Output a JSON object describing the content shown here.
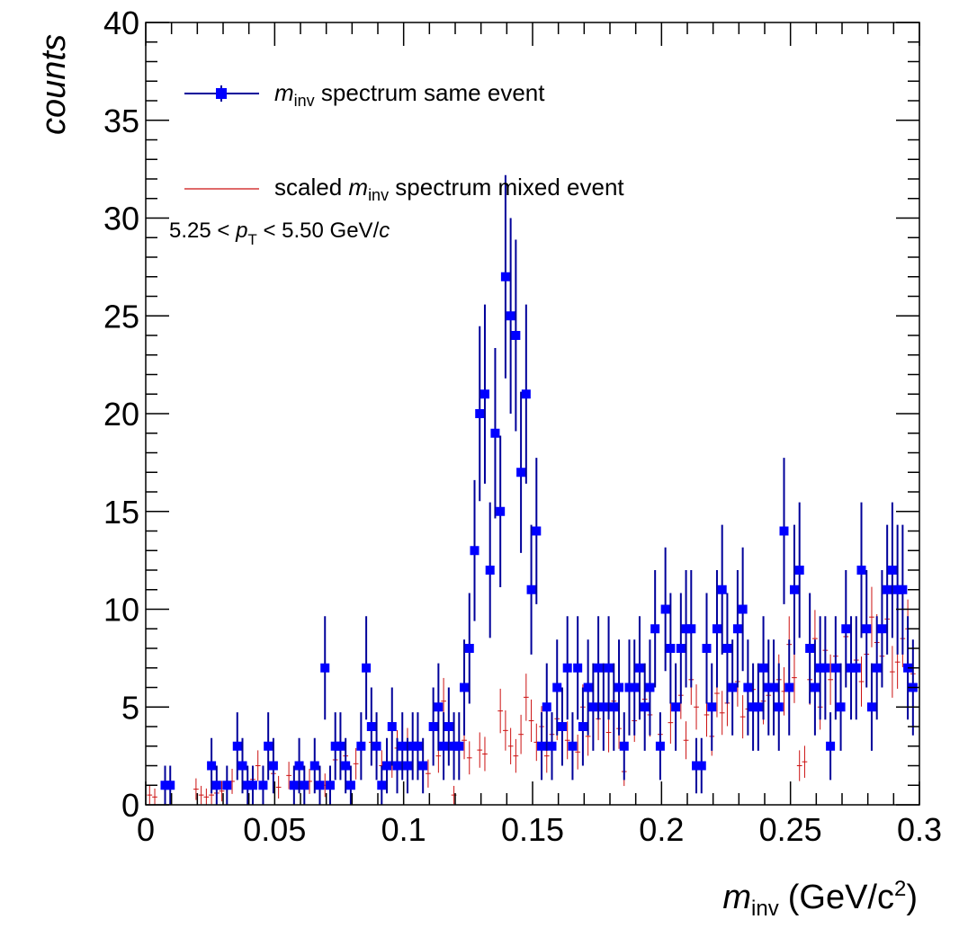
{
  "chart_data": {
    "type": "scatter",
    "xlabel": {
      "main": "m",
      "sub": "inv",
      "unit": "(GeV/c",
      "sup": "2",
      "close": ")"
    },
    "ylabel": "counts",
    "xlim": [
      0,
      0.3
    ],
    "ylim": [
      0,
      40
    ],
    "x_ticks": [
      "0",
      "0.05",
      "0.1",
      "0.15",
      "0.2",
      "0.25",
      "0.3"
    ],
    "x_tick_values": [
      0,
      0.05,
      0.1,
      0.15,
      0.2,
      0.25,
      0.3
    ],
    "y_ticks": [
      "0",
      "5",
      "10",
      "15",
      "20",
      "25",
      "30",
      "35",
      "40"
    ],
    "y_tick_values": [
      0,
      5,
      10,
      15,
      20,
      25,
      30,
      35,
      40
    ],
    "grid": false,
    "legend_position": "top-left",
    "annotation": {
      "prefix": "5.25 < ",
      "var": "p",
      "sub": "T",
      "suffix": " < 5.50 GeV/",
      "unit_var": "c"
    },
    "series": [
      {
        "name": {
          "var": "m",
          "sub": "inv",
          "rest": " spectrum same event"
        },
        "color": "#0000ff",
        "line_color": "#00009a",
        "style": "markers-with-errors",
        "points": [
          [
            0.0075,
            1
          ],
          [
            0.0095,
            1
          ],
          [
            0.0255,
            2
          ],
          [
            0.0275,
            1
          ],
          [
            0.0315,
            1
          ],
          [
            0.0355,
            3
          ],
          [
            0.0375,
            2
          ],
          [
            0.0395,
            1
          ],
          [
            0.0415,
            1
          ],
          [
            0.0455,
            1
          ],
          [
            0.0475,
            3
          ],
          [
            0.0495,
            2
          ],
          [
            0.0575,
            1
          ],
          [
            0.0595,
            2
          ],
          [
            0.0615,
            1
          ],
          [
            0.0655,
            2
          ],
          [
            0.0675,
            1
          ],
          [
            0.0695,
            7
          ],
          [
            0.0715,
            1
          ],
          [
            0.0735,
            3
          ],
          [
            0.0755,
            3
          ],
          [
            0.0775,
            2
          ],
          [
            0.0795,
            1
          ],
          [
            0.0835,
            3
          ],
          [
            0.0855,
            7
          ],
          [
            0.0875,
            4
          ],
          [
            0.0895,
            3
          ],
          [
            0.0915,
            1
          ],
          [
            0.0935,
            2
          ],
          [
            0.0955,
            4
          ],
          [
            0.0975,
            2
          ],
          [
            0.0995,
            3
          ],
          [
            0.1015,
            2
          ],
          [
            0.1035,
            3
          ],
          [
            0.1055,
            3
          ],
          [
            0.1075,
            2
          ],
          [
            0.1115,
            4
          ],
          [
            0.1135,
            5
          ],
          [
            0.1155,
            3
          ],
          [
            0.1175,
            4
          ],
          [
            0.1195,
            3
          ],
          [
            0.1215,
            3
          ],
          [
            0.1235,
            6
          ],
          [
            0.1255,
            8
          ],
          [
            0.1275,
            13
          ],
          [
            0.1295,
            20
          ],
          [
            0.1315,
            21
          ],
          [
            0.1335,
            12
          ],
          [
            0.1355,
            19
          ],
          [
            0.1375,
            15
          ],
          [
            0.1395,
            27
          ],
          [
            0.1415,
            25
          ],
          [
            0.1435,
            24
          ],
          [
            0.1455,
            17
          ],
          [
            0.1475,
            21
          ],
          [
            0.1495,
            11
          ],
          [
            0.1515,
            14
          ],
          [
            0.1535,
            3
          ],
          [
            0.1555,
            5
          ],
          [
            0.1575,
            3
          ],
          [
            0.1595,
            6
          ],
          [
            0.1615,
            4
          ],
          [
            0.1635,
            7
          ],
          [
            0.1655,
            3
          ],
          [
            0.1675,
            7
          ],
          [
            0.1695,
            4
          ],
          [
            0.1715,
            6
          ],
          [
            0.1735,
            5
          ],
          [
            0.1755,
            7
          ],
          [
            0.1775,
            5
          ],
          [
            0.1795,
            7
          ],
          [
            0.1815,
            5
          ],
          [
            0.1835,
            6
          ],
          [
            0.1855,
            3
          ],
          [
            0.1875,
            6
          ],
          [
            0.1895,
            6
          ],
          [
            0.1915,
            7
          ],
          [
            0.1935,
            5
          ],
          [
            0.1955,
            6
          ],
          [
            0.1975,
            9
          ],
          [
            0.1995,
            3
          ],
          [
            0.2015,
            10
          ],
          [
            0.2035,
            8
          ],
          [
            0.2055,
            5
          ],
          [
            0.2075,
            8
          ],
          [
            0.2095,
            9
          ],
          [
            0.2115,
            9
          ],
          [
            0.2135,
            2
          ],
          [
            0.2155,
            2
          ],
          [
            0.2175,
            8
          ],
          [
            0.2195,
            5
          ],
          [
            0.2215,
            9
          ],
          [
            0.2235,
            11
          ],
          [
            0.2255,
            8
          ],
          [
            0.2275,
            6
          ],
          [
            0.2295,
            9
          ],
          [
            0.2315,
            10
          ],
          [
            0.2335,
            6
          ],
          [
            0.2355,
            5
          ],
          [
            0.2375,
            5
          ],
          [
            0.2395,
            7
          ],
          [
            0.2415,
            6
          ],
          [
            0.2435,
            6
          ],
          [
            0.2455,
            5
          ],
          [
            0.2475,
            14
          ],
          [
            0.2495,
            6
          ],
          [
            0.2515,
            11
          ],
          [
            0.2535,
            12
          ],
          [
            0.2575,
            8
          ],
          [
            0.2595,
            6
          ],
          [
            0.2615,
            7
          ],
          [
            0.2635,
            7
          ],
          [
            0.2655,
            3
          ],
          [
            0.2675,
            7
          ],
          [
            0.2695,
            5
          ],
          [
            0.2715,
            9
          ],
          [
            0.2735,
            7
          ],
          [
            0.2755,
            7
          ],
          [
            0.2775,
            12
          ],
          [
            0.2795,
            9
          ],
          [
            0.2815,
            5
          ],
          [
            0.2835,
            7
          ],
          [
            0.2855,
            9
          ],
          [
            0.2875,
            11
          ],
          [
            0.2895,
            12
          ],
          [
            0.2915,
            11
          ],
          [
            0.2935,
            11
          ],
          [
            0.2955,
            7
          ],
          [
            0.2975,
            6
          ]
        ]
      },
      {
        "name": {
          "prefix": "scaled ",
          "var": "m",
          "sub": "inv",
          "rest": " spectrum mixed event"
        },
        "color": "#ff0000",
        "line_color": "#cc1111",
        "style": "errorbars-only",
        "points": [
          [
            0.0015,
            0.5
          ],
          [
            0.0035,
            0.4
          ],
          [
            0.0195,
            0.8
          ],
          [
            0.0215,
            0.5
          ],
          [
            0.0235,
            0.4
          ],
          [
            0.0255,
            0.5
          ],
          [
            0.0275,
            0.6
          ],
          [
            0.0295,
            0.7
          ],
          [
            0.0335,
            1.2
          ],
          [
            0.0375,
            1.8
          ],
          [
            0.0415,
            1.3
          ],
          [
            0.0435,
            2.0
          ],
          [
            0.0455,
            1.0
          ],
          [
            0.0495,
            1.6
          ],
          [
            0.0515,
            0.9
          ],
          [
            0.0555,
            1.5
          ],
          [
            0.0595,
            1.8
          ],
          [
            0.0635,
            1.2
          ],
          [
            0.0655,
            2.2
          ],
          [
            0.0695,
            1.0
          ],
          [
            0.0735,
            2.3
          ],
          [
            0.0775,
            2.5
          ],
          [
            0.0815,
            2.1
          ],
          [
            0.0835,
            3.0
          ],
          [
            0.0875,
            3.2
          ],
          [
            0.0915,
            2.0
          ],
          [
            0.0955,
            2.2
          ],
          [
            0.0975,
            2.9
          ],
          [
            0.1015,
            3.0
          ],
          [
            0.1055,
            2.8
          ],
          [
            0.1095,
            1.6
          ],
          [
            0.1135,
            2.5
          ],
          [
            0.1155,
            5.3
          ],
          [
            0.1175,
            3.1
          ],
          [
            0.1195,
            0.5
          ],
          [
            0.1235,
            3.3
          ],
          [
            0.1255,
            2.4
          ],
          [
            0.1295,
            2.8
          ],
          [
            0.1315,
            2.6
          ],
          [
            0.1375,
            4.8
          ],
          [
            0.1395,
            3.8
          ],
          [
            0.1415,
            3.0
          ],
          [
            0.1435,
            2.5
          ],
          [
            0.1455,
            3.6
          ],
          [
            0.1475,
            5.5
          ],
          [
            0.1495,
            4.3
          ],
          [
            0.1515,
            3.2
          ],
          [
            0.1535,
            4.0
          ],
          [
            0.1555,
            2.5
          ],
          [
            0.1575,
            3.6
          ],
          [
            0.1595,
            4.4
          ],
          [
            0.1635,
            3.3
          ],
          [
            0.1675,
            2.7
          ],
          [
            0.1695,
            5.0
          ],
          [
            0.1715,
            3.5
          ],
          [
            0.1755,
            4.4
          ],
          [
            0.1795,
            3.7
          ],
          [
            0.1815,
            5.3
          ],
          [
            0.1835,
            3.9
          ],
          [
            0.1855,
            1.7
          ],
          [
            0.1895,
            4.3
          ],
          [
            0.1935,
            5.4
          ],
          [
            0.1955,
            4.6
          ],
          [
            0.1995,
            3.6
          ],
          [
            0.2035,
            4.2
          ],
          [
            0.2075,
            5.6
          ],
          [
            0.2095,
            3.3
          ],
          [
            0.2115,
            6.4
          ],
          [
            0.2135,
            5.0
          ],
          [
            0.2175,
            4.6
          ],
          [
            0.2195,
            3.5
          ],
          [
            0.2215,
            5.7
          ],
          [
            0.2235,
            4.7
          ],
          [
            0.2255,
            5.2
          ],
          [
            0.2295,
            6.3
          ],
          [
            0.2315,
            4.5
          ],
          [
            0.2335,
            4.9
          ],
          [
            0.2355,
            5.9
          ],
          [
            0.2395,
            5.3
          ],
          [
            0.2415,
            5.6
          ],
          [
            0.2455,
            6.4
          ],
          [
            0.2475,
            5.8
          ],
          [
            0.2495,
            8.2
          ],
          [
            0.2515,
            6.5
          ],
          [
            0.2535,
            2.0
          ],
          [
            0.2555,
            2.2
          ],
          [
            0.2575,
            6.4
          ],
          [
            0.2595,
            8.5
          ],
          [
            0.2615,
            5.0
          ],
          [
            0.2635,
            7.9
          ],
          [
            0.2655,
            6.4
          ],
          [
            0.2675,
            7.6
          ],
          [
            0.2695,
            5.2
          ],
          [
            0.2715,
            8.6
          ],
          [
            0.2735,
            7.0
          ],
          [
            0.2755,
            7.4
          ],
          [
            0.2775,
            6.3
          ],
          [
            0.2795,
            7.7
          ],
          [
            0.2815,
            9.6
          ],
          [
            0.2835,
            8.3
          ],
          [
            0.2855,
            7.6
          ],
          [
            0.2875,
            9.5
          ],
          [
            0.2895,
            6.8
          ],
          [
            0.2915,
            7.3
          ],
          [
            0.2935,
            8.5
          ],
          [
            0.2955,
            9.0
          ],
          [
            0.2975,
            6.7
          ]
        ]
      }
    ]
  }
}
